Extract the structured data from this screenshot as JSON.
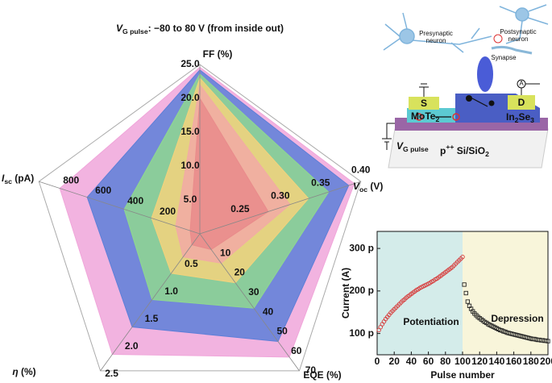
{
  "chart_data": [
    {
      "type": "radar",
      "title": [
        {
          "text": "V",
          "style": "italic"
        },
        {
          "text": "G pulse",
          "style": "sub"
        },
        {
          "text": ": −80 to 80 V (from inside out)"
        }
      ],
      "axes": [
        {
          "label": [
            {
              "text": "FF (%)"
            }
          ],
          "lim": [
            0,
            25
          ],
          "ticks": [
            {
              "value": 5,
              "label": "5.0"
            },
            {
              "value": 10,
              "label": "10.0"
            },
            {
              "value": 15,
              "label": "15.0"
            },
            {
              "value": 20,
              "label": "20.0"
            },
            {
              "value": 25,
              "label": "25.0"
            }
          ]
        },
        {
          "label": [
            {
              "text": "V",
              "style": "italic"
            },
            {
              "text": "oc",
              "style": "sub"
            },
            {
              "text": " (V)"
            }
          ],
          "lim": [
            0.2,
            0.4
          ],
          "ticks": [
            0.25,
            {
              "value": 0.3,
              "label": "0.30"
            },
            0.35,
            {
              "value": 0.4,
              "label": "0.40"
            }
          ]
        },
        {
          "label": [
            {
              "text": "EQE (%)"
            }
          ],
          "lim": [
            0,
            70
          ],
          "ticks": [
            10,
            20,
            30,
            40,
            50,
            60,
            70
          ]
        },
        {
          "label": [
            {
              "text": "η",
              "style": "italic"
            },
            {
              "text": " (%)"
            }
          ],
          "lim": [
            0,
            2.5
          ],
          "ticks": [
            0.5,
            {
              "value": 1,
              "label": "1.0"
            },
            1.5,
            {
              "value": 2,
              "label": "2.0"
            },
            2.5
          ]
        },
        {
          "label": [
            {
              "text": "I",
              "style": "italic"
            },
            {
              "text": "sc",
              "style": "sub"
            },
            {
              "text": " (pA)"
            }
          ],
          "lim": [
            0,
            1000
          ],
          "ticks": [
            200,
            400,
            600,
            800
          ]
        }
      ],
      "series": [
        {
          "color": "#f0a6da",
          "values": [
            24.6,
            0.392,
            63,
            2.2,
            870
          ]
        },
        {
          "color": "#5d7fd8",
          "values": [
            24.2,
            0.385,
            55,
            1.7,
            700
          ]
        },
        {
          "color": "#8fd88f",
          "values": [
            23.6,
            0.36,
            38,
            1.2,
            470
          ]
        },
        {
          "color": "#f3d27c",
          "values": [
            23,
            0.335,
            25,
            0.72,
            300
          ]
        },
        {
          "color": "#f2aaa6",
          "values": [
            22,
            0.312,
            15,
            0.42,
            150
          ]
        },
        {
          "color": "#e98b8b",
          "values": [
            20,
            0.285,
            8,
            0.2,
            60
          ]
        }
      ]
    },
    {
      "type": "scatter",
      "xlabel": "Pulse number",
      "ylabel": "Current (A)",
      "xlim": [
        0,
        200
      ],
      "xticks": [
        0,
        20,
        40,
        60,
        80,
        100,
        120,
        140,
        160,
        180,
        200
      ],
      "ylim": [
        5e-11,
        3.4e-10
      ],
      "yticks": [
        {
          "value": 1e-10,
          "label": "100 p"
        },
        {
          "value": 2e-10,
          "label": "200 p"
        },
        {
          "value": 3e-10,
          "label": "300 p"
        }
      ],
      "shaded_regions": [
        {
          "x": [
            0,
            100
          ],
          "color": "#d4ecea"
        },
        {
          "x": [
            100,
            200
          ],
          "color": "#f8f5da"
        }
      ],
      "annotations": [
        "Potentiation",
        "Depression"
      ],
      "series": [
        {
          "color": "#d63a3a",
          "marker": "circle",
          "x": [
            2,
            4,
            6,
            8,
            10,
            12,
            14,
            16,
            18,
            20,
            22,
            24,
            26,
            28,
            30,
            32,
            34,
            36,
            38,
            40,
            42,
            44,
            46,
            48,
            50,
            52,
            54,
            56,
            58,
            60,
            62,
            64,
            66,
            68,
            70,
            72,
            74,
            76,
            78,
            80,
            82,
            84,
            86,
            88,
            90,
            92,
            94,
            96,
            98,
            100
          ],
          "values": [
            1.08e-10,
            1.15e-10,
            1.22e-10,
            1.28e-10,
            1.34e-10,
            1.39e-10,
            1.44e-10,
            1.49e-10,
            1.53e-10,
            1.57e-10,
            1.61e-10,
            1.65e-10,
            1.69e-10,
            1.73e-10,
            1.77e-10,
            1.8e-10,
            1.84e-10,
            1.87e-10,
            1.9e-10,
            1.93e-10,
            1.96e-10,
            1.99e-10,
            2.02e-10,
            2.04e-10,
            2.07e-10,
            2.09e-10,
            2.11e-10,
            2.13e-10,
            2.15e-10,
            2.17e-10,
            2.19e-10,
            2.22e-10,
            2.24e-10,
            2.27e-10,
            2.29e-10,
            2.32e-10,
            2.35e-10,
            2.38e-10,
            2.41e-10,
            2.44e-10,
            2.47e-10,
            2.5e-10,
            2.53e-10,
            2.56e-10,
            2.6e-10,
            2.64e-10,
            2.68e-10,
            2.72e-10,
            2.76e-10,
            2.8e-10
          ]
        },
        {
          "color": "#222222",
          "marker": "square",
          "x": [
            102,
            104,
            106,
            108,
            110,
            112,
            114,
            116,
            118,
            120,
            122,
            124,
            126,
            128,
            130,
            132,
            134,
            136,
            138,
            140,
            142,
            144,
            146,
            148,
            150,
            152,
            154,
            156,
            158,
            160,
            162,
            164,
            166,
            168,
            170,
            172,
            174,
            176,
            178,
            180,
            182,
            184,
            186,
            188,
            190,
            192,
            194,
            196,
            198,
            200
          ],
          "values": [
            2.15e-10,
            1.95e-10,
            1.75e-10,
            1.65e-10,
            1.58e-10,
            1.52e-10,
            1.47e-10,
            1.43e-10,
            1.39e-10,
            1.36e-10,
            1.33e-10,
            1.3e-10,
            1.27e-10,
            1.25e-10,
            1.22e-10,
            1.2e-10,
            1.18e-10,
            1.16e-10,
            1.14e-10,
            1.12e-10,
            1.1e-10,
            1.08e-10,
            1.07e-10,
            1.05e-10,
            1.04e-10,
            1.02e-10,
            1.01e-10,
            1e-10,
            9.9e-11,
            9.8e-11,
            9.7e-11,
            9.6e-11,
            9.5e-11,
            9.4e-11,
            9.3e-11,
            9.2e-11,
            9.1e-11,
            9e-11,
            8.9e-11,
            8.8e-11,
            8.7e-11,
            8.7e-11,
            8.6e-11,
            8.5e-11,
            8.5e-11,
            8.4e-11,
            8.4e-11,
            8.3e-11,
            8.3e-11,
            8.2e-11
          ]
        }
      ]
    }
  ],
  "diagram": {
    "presynaptic": [
      "Presynaptic",
      "neuron"
    ],
    "postsynaptic": [
      "Postsynaptic",
      "neuron"
    ],
    "synapse": "Synapse",
    "source": "S",
    "drain": "D",
    "meter": "A",
    "mote2": [
      {
        "text": "MoTe"
      },
      {
        "text": "2",
        "style": "sub"
      }
    ],
    "in2se3": [
      {
        "text": "In"
      },
      {
        "text": "2",
        "style": "sub"
      },
      {
        "text": "Se"
      },
      {
        "text": "3",
        "style": "sub"
      }
    ],
    "gate": [
      {
        "text": "V",
        "style": "italic"
      },
      {
        "text": "G pulse",
        "style": "sub"
      }
    ],
    "substrate": [
      {
        "text": "p"
      },
      {
        "text": "++",
        "style": "sup"
      },
      {
        "text": " Si/SiO"
      },
      {
        "text": "2",
        "style": "sub"
      }
    ]
  }
}
